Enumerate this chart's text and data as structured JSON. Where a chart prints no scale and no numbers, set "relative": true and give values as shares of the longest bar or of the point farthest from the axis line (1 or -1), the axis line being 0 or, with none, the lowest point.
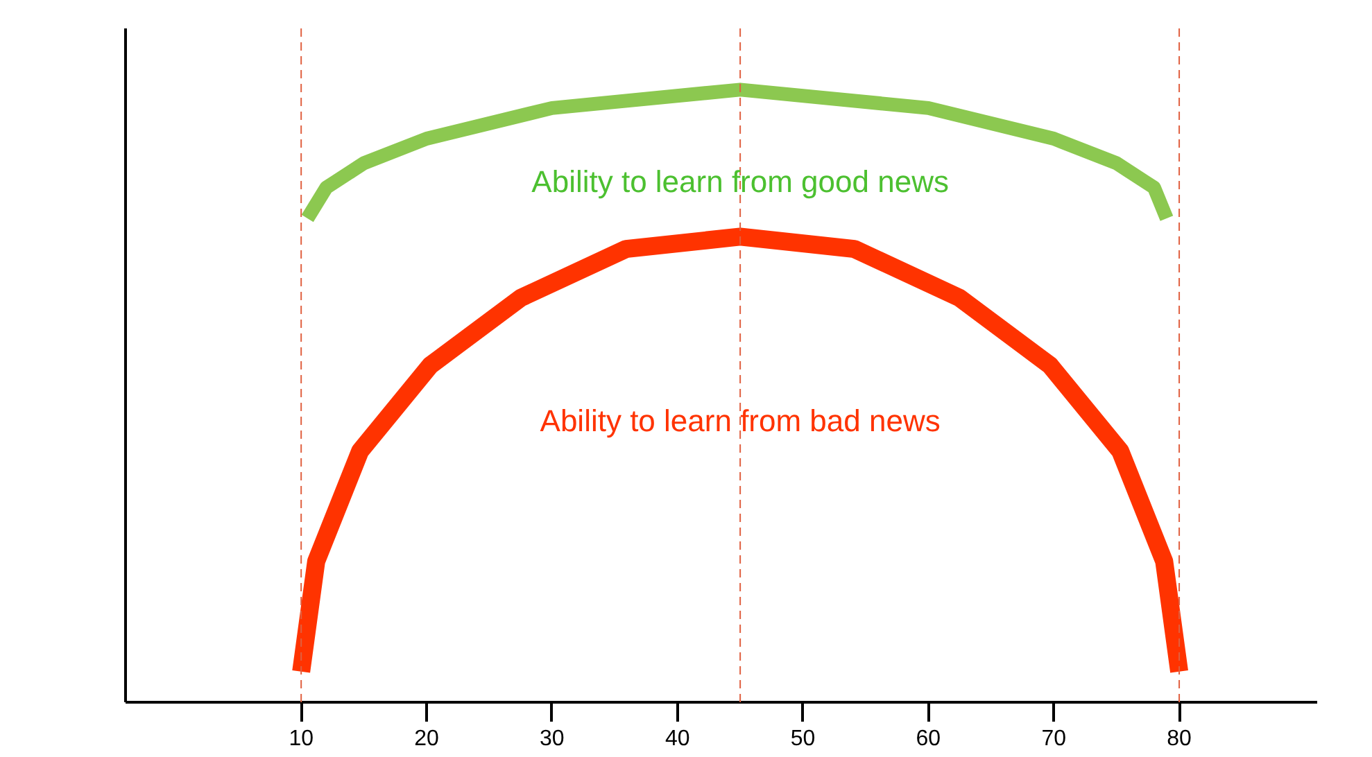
{
  "chart_data": {
    "type": "line",
    "relative": true,
    "xlim": [
      -4,
      91
    ],
    "xticks": [
      10,
      20,
      30,
      40,
      50,
      60,
      70,
      80
    ],
    "grid": false,
    "marker": "none",
    "line_style": "solid",
    "tick_labels": "x",
    "series": [
      {
        "color": "#8cc850",
        "x": [
          10.5,
          12,
          15,
          20,
          30,
          45,
          60,
          70,
          75,
          78,
          79
        ],
        "values": [
          0.79,
          0.84,
          0.88,
          0.92,
          0.97,
          1.0,
          0.97,
          0.92,
          0.88,
          0.84,
          0.79
        ]
      },
      {
        "color": "#ff3300",
        "x": [
          10,
          11.2,
          14.7,
          20.3,
          27.5,
          35.9,
          45,
          54.1,
          62.5,
          69.7,
          75.3,
          78.8,
          80
        ],
        "values": [
          0.05,
          0.23,
          0.41,
          0.55,
          0.66,
          0.74,
          0.76,
          0.74,
          0.66,
          0.55,
          0.41,
          0.23,
          0.05
        ]
      }
    ],
    "ref_lines": [
      {
        "axis": "x",
        "value": 10,
        "color": "#e06040",
        "line_style": "dashed"
      },
      {
        "axis": "x",
        "value": 45,
        "color": "#e06040",
        "line_style": "dashed"
      },
      {
        "axis": "x",
        "value": 80,
        "color": "#e06040",
        "line_style": "dashed"
      }
    ],
    "annotations": [
      {
        "text": "Ability to learn from good news",
        "x": 45,
        "y": 0.85
      },
      {
        "text": "Ability to learn from bad news",
        "x": 45,
        "y": 0.46
      }
    ]
  }
}
